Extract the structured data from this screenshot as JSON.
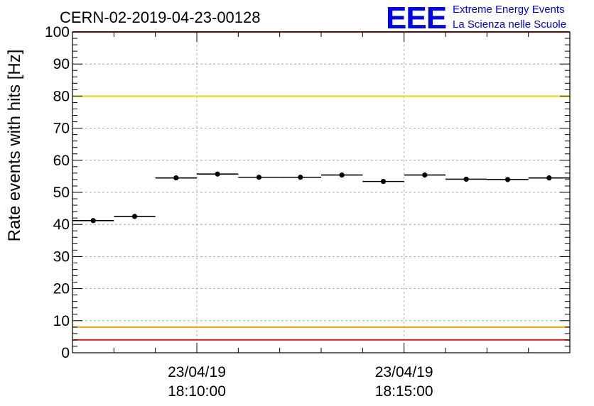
{
  "colors": {
    "threshold_red": "#ee2222",
    "threshold_yellow": "#f0d000",
    "threshold_orange": "#f5a000",
    "logo_blue": "#0000ee",
    "marker": "#000000",
    "grid": "#999999"
  },
  "logo": {
    "mark": "EEE",
    "line1": "Extreme Energy Events",
    "line2": "La Scienza nelle Scuole"
  },
  "chart_data": {
    "type": "scatter",
    "title": "CERN-02-2019-04-23-00128",
    "xlabel": "",
    "ylabel": "Rate events with hits [Hz]",
    "ylim": [
      0,
      100
    ],
    "yticks": [
      "0",
      "10",
      "20",
      "30",
      "40",
      "50",
      "60",
      "70",
      "80",
      "90",
      "100"
    ],
    "x_unit": "minutes",
    "xlim": [
      18.0,
      30.0
    ],
    "xticks": [
      {
        "x": 21,
        "date": "23/04/19",
        "time": "18:10:00"
      },
      {
        "x": 26,
        "date": "23/04/19",
        "time": "18:15:00"
      }
    ],
    "grid": true,
    "thresholds": [
      {
        "value": 100,
        "color": "#ee2222"
      },
      {
        "value": 80,
        "color": "#f0d000"
      },
      {
        "value": 8,
        "color": "#f5a000"
      },
      {
        "value": 4,
        "color": "#ee2222"
      }
    ],
    "points": [
      {
        "x_start": 18.0,
        "x_end": 19.0,
        "y": 41.2,
        "err": 0.6
      },
      {
        "x_start": 19.0,
        "x_end": 20.0,
        "y": 42.5,
        "err": 0.6
      },
      {
        "x_start": 20.0,
        "x_end": 21.0,
        "y": 54.5,
        "err": 0.7
      },
      {
        "x_start": 21.0,
        "x_end": 22.0,
        "y": 55.7,
        "err": 0.7
      },
      {
        "x_start": 22.0,
        "x_end": 23.0,
        "y": 54.7,
        "err": 0.7
      },
      {
        "x_start": 23.0,
        "x_end": 24.0,
        "y": 54.7,
        "err": 0.7
      },
      {
        "x_start": 24.0,
        "x_end": 25.0,
        "y": 55.4,
        "err": 0.7
      },
      {
        "x_start": 25.0,
        "x_end": 26.0,
        "y": 53.4,
        "err": 0.7
      },
      {
        "x_start": 26.0,
        "x_end": 27.0,
        "y": 55.4,
        "err": 0.7
      },
      {
        "x_start": 27.0,
        "x_end": 28.0,
        "y": 54.1,
        "err": 0.7
      },
      {
        "x_start": 28.0,
        "x_end": 29.0,
        "y": 54.0,
        "err": 0.7
      },
      {
        "x_start": 29.0,
        "x_end": 30.0,
        "y": 54.5,
        "err": 0.7
      }
    ]
  }
}
